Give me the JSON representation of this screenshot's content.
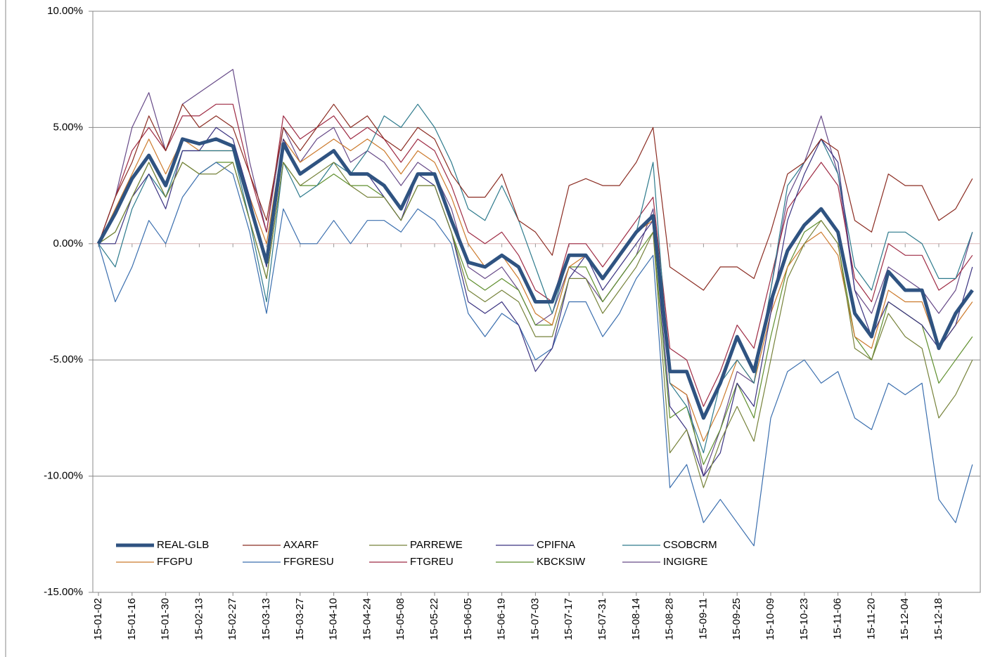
{
  "chart_data": {
    "type": "line",
    "categories": [
      "15-01-02",
      null,
      "15-01-16",
      null,
      "15-01-30",
      null,
      "15-02-13",
      null,
      "15-02-27",
      null,
      "15-03-13",
      null,
      "15-03-27",
      null,
      "15-04-10",
      null,
      "15-04-24",
      null,
      "15-05-08",
      null,
      "15-05-22",
      null,
      "15-06-05",
      null,
      "15-06-19",
      null,
      "15-07-03",
      null,
      "15-07-17",
      null,
      "15-07-31",
      null,
      "15-08-14",
      null,
      "15-08-28",
      null,
      "15-09-11",
      null,
      "15-09-25",
      null,
      "15-10-09",
      null,
      "15-10-23",
      null,
      "15-11-06",
      null,
      "15-11-20",
      null,
      "15-12-04",
      null,
      "15-12-18",
      null,
      null
    ],
    "ylim": [
      -15,
      10
    ],
    "yticks": [
      {
        "value": -15,
        "label": "-15.00%"
      },
      {
        "value": -10,
        "label": "-10.00%"
      },
      {
        "value": -5,
        "label": "-5.00%"
      },
      {
        "value": 0,
        "label": "0.00%"
      },
      {
        "value": 5,
        "label": "5.00%"
      },
      {
        "value": 10,
        "label": "10.00%"
      }
    ],
    "grid": true,
    "legend": "bottom-left",
    "series": [
      {
        "name": "REAL-GLB",
        "color": "#2f5381",
        "values": [
          0,
          1.3,
          2.8,
          3.8,
          2.5,
          4.5,
          4.3,
          4.5,
          4.2,
          1.7,
          -0.8,
          4.3,
          3.0,
          3.5,
          4.0,
          3.0,
          3.0,
          2.5,
          1.5,
          3.0,
          3.0,
          1.0,
          -0.8,
          -1.0,
          -0.5,
          -1.0,
          -2.5,
          -2.5,
          -0.5,
          -0.5,
          -1.5,
          -0.5,
          0.5,
          1.2,
          -5.5,
          -5.5,
          -7.5,
          -6.0,
          -4.0,
          -5.5,
          -2.5,
          -0.3,
          0.8,
          1.5,
          0.5,
          -3.0,
          -4.0,
          -1.2,
          -2.0,
          -2.0,
          -4.5,
          -3.0,
          -2.0
        ]
      },
      {
        "name": "AXARF",
        "color": "#8b2c22",
        "values": [
          0,
          2.0,
          3.5,
          5.5,
          4.0,
          6.0,
          5.0,
          5.5,
          5.0,
          3.0,
          1.0,
          5.0,
          4.0,
          5.0,
          6.0,
          5.0,
          5.5,
          4.5,
          4.0,
          5.0,
          4.5,
          3.0,
          2.0,
          2.0,
          3.0,
          1.0,
          0.5,
          -0.5,
          2.5,
          2.8,
          2.5,
          2.5,
          3.5,
          5.0,
          -1.0,
          -1.5,
          -2.0,
          -1.0,
          -1.0,
          -1.5,
          0.5,
          3.0,
          3.5,
          4.5,
          4.0,
          1.0,
          0.5,
          3.0,
          2.5,
          2.5,
          1.0,
          1.5,
          2.8
        ]
      },
      {
        "name": "PARREWE",
        "color": "#76823a",
        "values": [
          0,
          0.5,
          2.0,
          3.5,
          2.0,
          3.5,
          3.0,
          3.0,
          3.5,
          1.0,
          -1.5,
          3.5,
          2.5,
          3.0,
          3.5,
          2.5,
          2.0,
          2.0,
          1.0,
          2.5,
          2.5,
          0.5,
          -2.0,
          -2.5,
          -2.0,
          -2.5,
          -4.0,
          -4.0,
          -1.5,
          -1.5,
          -3.0,
          -2.0,
          -1.0,
          0.5,
          -9.0,
          -8.0,
          -10.5,
          -8.5,
          -7.0,
          -8.5,
          -5.0,
          -1.5,
          0.0,
          1.0,
          0.0,
          -4.5,
          -5.0,
          -3.0,
          -4.0,
          -4.5,
          -7.5,
          -6.5,
          -5.0
        ]
      },
      {
        "name": "CPIFNA",
        "color": "#3a3280",
        "values": [
          0,
          0.0,
          2.0,
          3.0,
          1.5,
          4.0,
          4.0,
          5.0,
          4.5,
          2.0,
          -1.0,
          4.5,
          3.0,
          3.5,
          4.0,
          3.0,
          3.0,
          2.0,
          1.0,
          3.0,
          2.5,
          0.5,
          -2.5,
          -3.0,
          -2.5,
          -3.5,
          -5.5,
          -4.5,
          -1.5,
          -0.5,
          -2.0,
          -1.0,
          0.0,
          1.0,
          -7.0,
          -8.0,
          -10.0,
          -9.0,
          -6.0,
          -7.0,
          -3.0,
          1.0,
          3.0,
          4.5,
          3.5,
          -2.0,
          -4.0,
          -2.5,
          -3.0,
          -3.5,
          -4.5,
          -3.5,
          -1.0
        ]
      },
      {
        "name": "CSOBCRM",
        "color": "#2d7a8c",
        "values": [
          0,
          -1.0,
          1.5,
          3.0,
          2.0,
          4.0,
          4.0,
          4.0,
          4.0,
          1.0,
          -2.5,
          3.5,
          2.0,
          2.5,
          3.5,
          3.0,
          4.0,
          5.5,
          5.0,
          6.0,
          5.0,
          3.5,
          1.5,
          1.0,
          2.5,
          1.0,
          -1.0,
          -3.0,
          -0.5,
          -0.5,
          -1.5,
          -0.5,
          0.5,
          3.5,
          -6.0,
          -7.0,
          -9.0,
          -6.0,
          -5.0,
          -6.0,
          -2.0,
          2.5,
          3.5,
          4.5,
          3.0,
          -1.0,
          -2.0,
          0.5,
          0.5,
          0.0,
          -1.5,
          -1.5,
          0.5
        ]
      },
      {
        "name": "FFGPU",
        "color": "#cc7a2c",
        "values": [
          0,
          1.5,
          3.0,
          4.5,
          3.0,
          4.5,
          4.0,
          4.0,
          4.0,
          2.0,
          0.0,
          4.5,
          3.5,
          4.0,
          4.5,
          4.0,
          4.5,
          4.0,
          3.0,
          4.0,
          3.5,
          2.0,
          0.0,
          -1.0,
          -0.5,
          -1.5,
          -3.0,
          -3.5,
          -1.0,
          -0.5,
          -1.5,
          -0.5,
          0.5,
          1.0,
          -6.0,
          -6.5,
          -8.5,
          -7.0,
          -5.0,
          -6.0,
          -3.0,
          -1.0,
          0.0,
          0.5,
          -0.5,
          -4.0,
          -4.5,
          -2.0,
          -2.5,
          -2.5,
          -4.5,
          -3.5,
          -2.5
        ]
      },
      {
        "name": "FFGRESU",
        "color": "#3a6eae",
        "values": [
          0,
          -2.5,
          -1.0,
          1.0,
          0.0,
          2.0,
          3.0,
          3.5,
          3.0,
          0.5,
          -3.0,
          1.5,
          0.0,
          0.0,
          1.0,
          0.0,
          1.0,
          1.0,
          0.5,
          1.5,
          1.0,
          0.0,
          -3.0,
          -4.0,
          -3.0,
          -3.5,
          -5.0,
          -4.5,
          -2.5,
          -2.5,
          -4.0,
          -3.0,
          -1.5,
          -0.5,
          -10.5,
          -9.5,
          -12.0,
          -11.0,
          -12.0,
          -13.0,
          -7.5,
          -5.5,
          -5.0,
          -6.0,
          -5.5,
          -7.5,
          -8.0,
          -6.0,
          -6.5,
          -6.0,
          -11.0,
          -12.0,
          -9.5
        ]
      },
      {
        "name": "FTGREU",
        "color": "#9e2b44",
        "values": [
          0,
          2.0,
          4.0,
          5.0,
          4.0,
          5.5,
          5.5,
          6.0,
          6.0,
          3.0,
          0.5,
          5.5,
          4.5,
          5.0,
          5.5,
          4.5,
          5.0,
          4.5,
          3.5,
          4.5,
          4.0,
          2.5,
          0.5,
          0.0,
          0.5,
          -0.5,
          -2.0,
          -2.5,
          0.0,
          0.0,
          -1.0,
          0.0,
          1.0,
          2.0,
          -4.5,
          -5.0,
          -7.0,
          -5.5,
          -3.5,
          -4.5,
          -1.5,
          1.5,
          2.5,
          3.5,
          2.5,
          -1.5,
          -2.5,
          0.0,
          -0.5,
          -0.5,
          -2.0,
          -1.5,
          -0.5
        ]
      },
      {
        "name": "KBCKSIW",
        "color": "#5f8f2e",
        "values": [
          0,
          0.5,
          2.0,
          3.5,
          2.0,
          3.5,
          3.0,
          3.5,
          3.5,
          1.0,
          -1.5,
          3.5,
          2.5,
          2.5,
          3.0,
          2.5,
          2.5,
          2.0,
          1.0,
          2.5,
          2.5,
          0.5,
          -1.5,
          -2.0,
          -1.5,
          -2.0,
          -3.5,
          -3.5,
          -1.0,
          -1.0,
          -2.5,
          -1.5,
          -0.5,
          0.5,
          -7.5,
          -7.0,
          -9.5,
          -8.0,
          -6.0,
          -7.5,
          -4.0,
          -1.0,
          0.5,
          1.0,
          0.0,
          -4.0,
          -5.0,
          -2.5,
          -3.0,
          -3.5,
          -6.0,
          -5.0,
          -4.0
        ]
      },
      {
        "name": "INGIGRE",
        "color": "#674a88",
        "values": [
          0,
          2.0,
          5.0,
          6.5,
          4.0,
          6.0,
          6.5,
          7.0,
          7.5,
          3.5,
          0.5,
          5.0,
          3.5,
          4.5,
          5.0,
          3.5,
          4.0,
          3.5,
          2.5,
          3.5,
          3.0,
          1.5,
          -1.0,
          -1.5,
          -1.0,
          -2.0,
          -3.5,
          -3.0,
          -1.0,
          -1.5,
          -2.5,
          -1.5,
          -0.5,
          1.5,
          -6.0,
          -6.5,
          -10.0,
          -8.0,
          -5.5,
          -6.0,
          -2.0,
          2.0,
          3.5,
          5.5,
          3.0,
          -2.0,
          -3.0,
          -1.0,
          -1.5,
          -2.0,
          -3.0,
          -2.0,
          0.5
        ]
      }
    ]
  }
}
